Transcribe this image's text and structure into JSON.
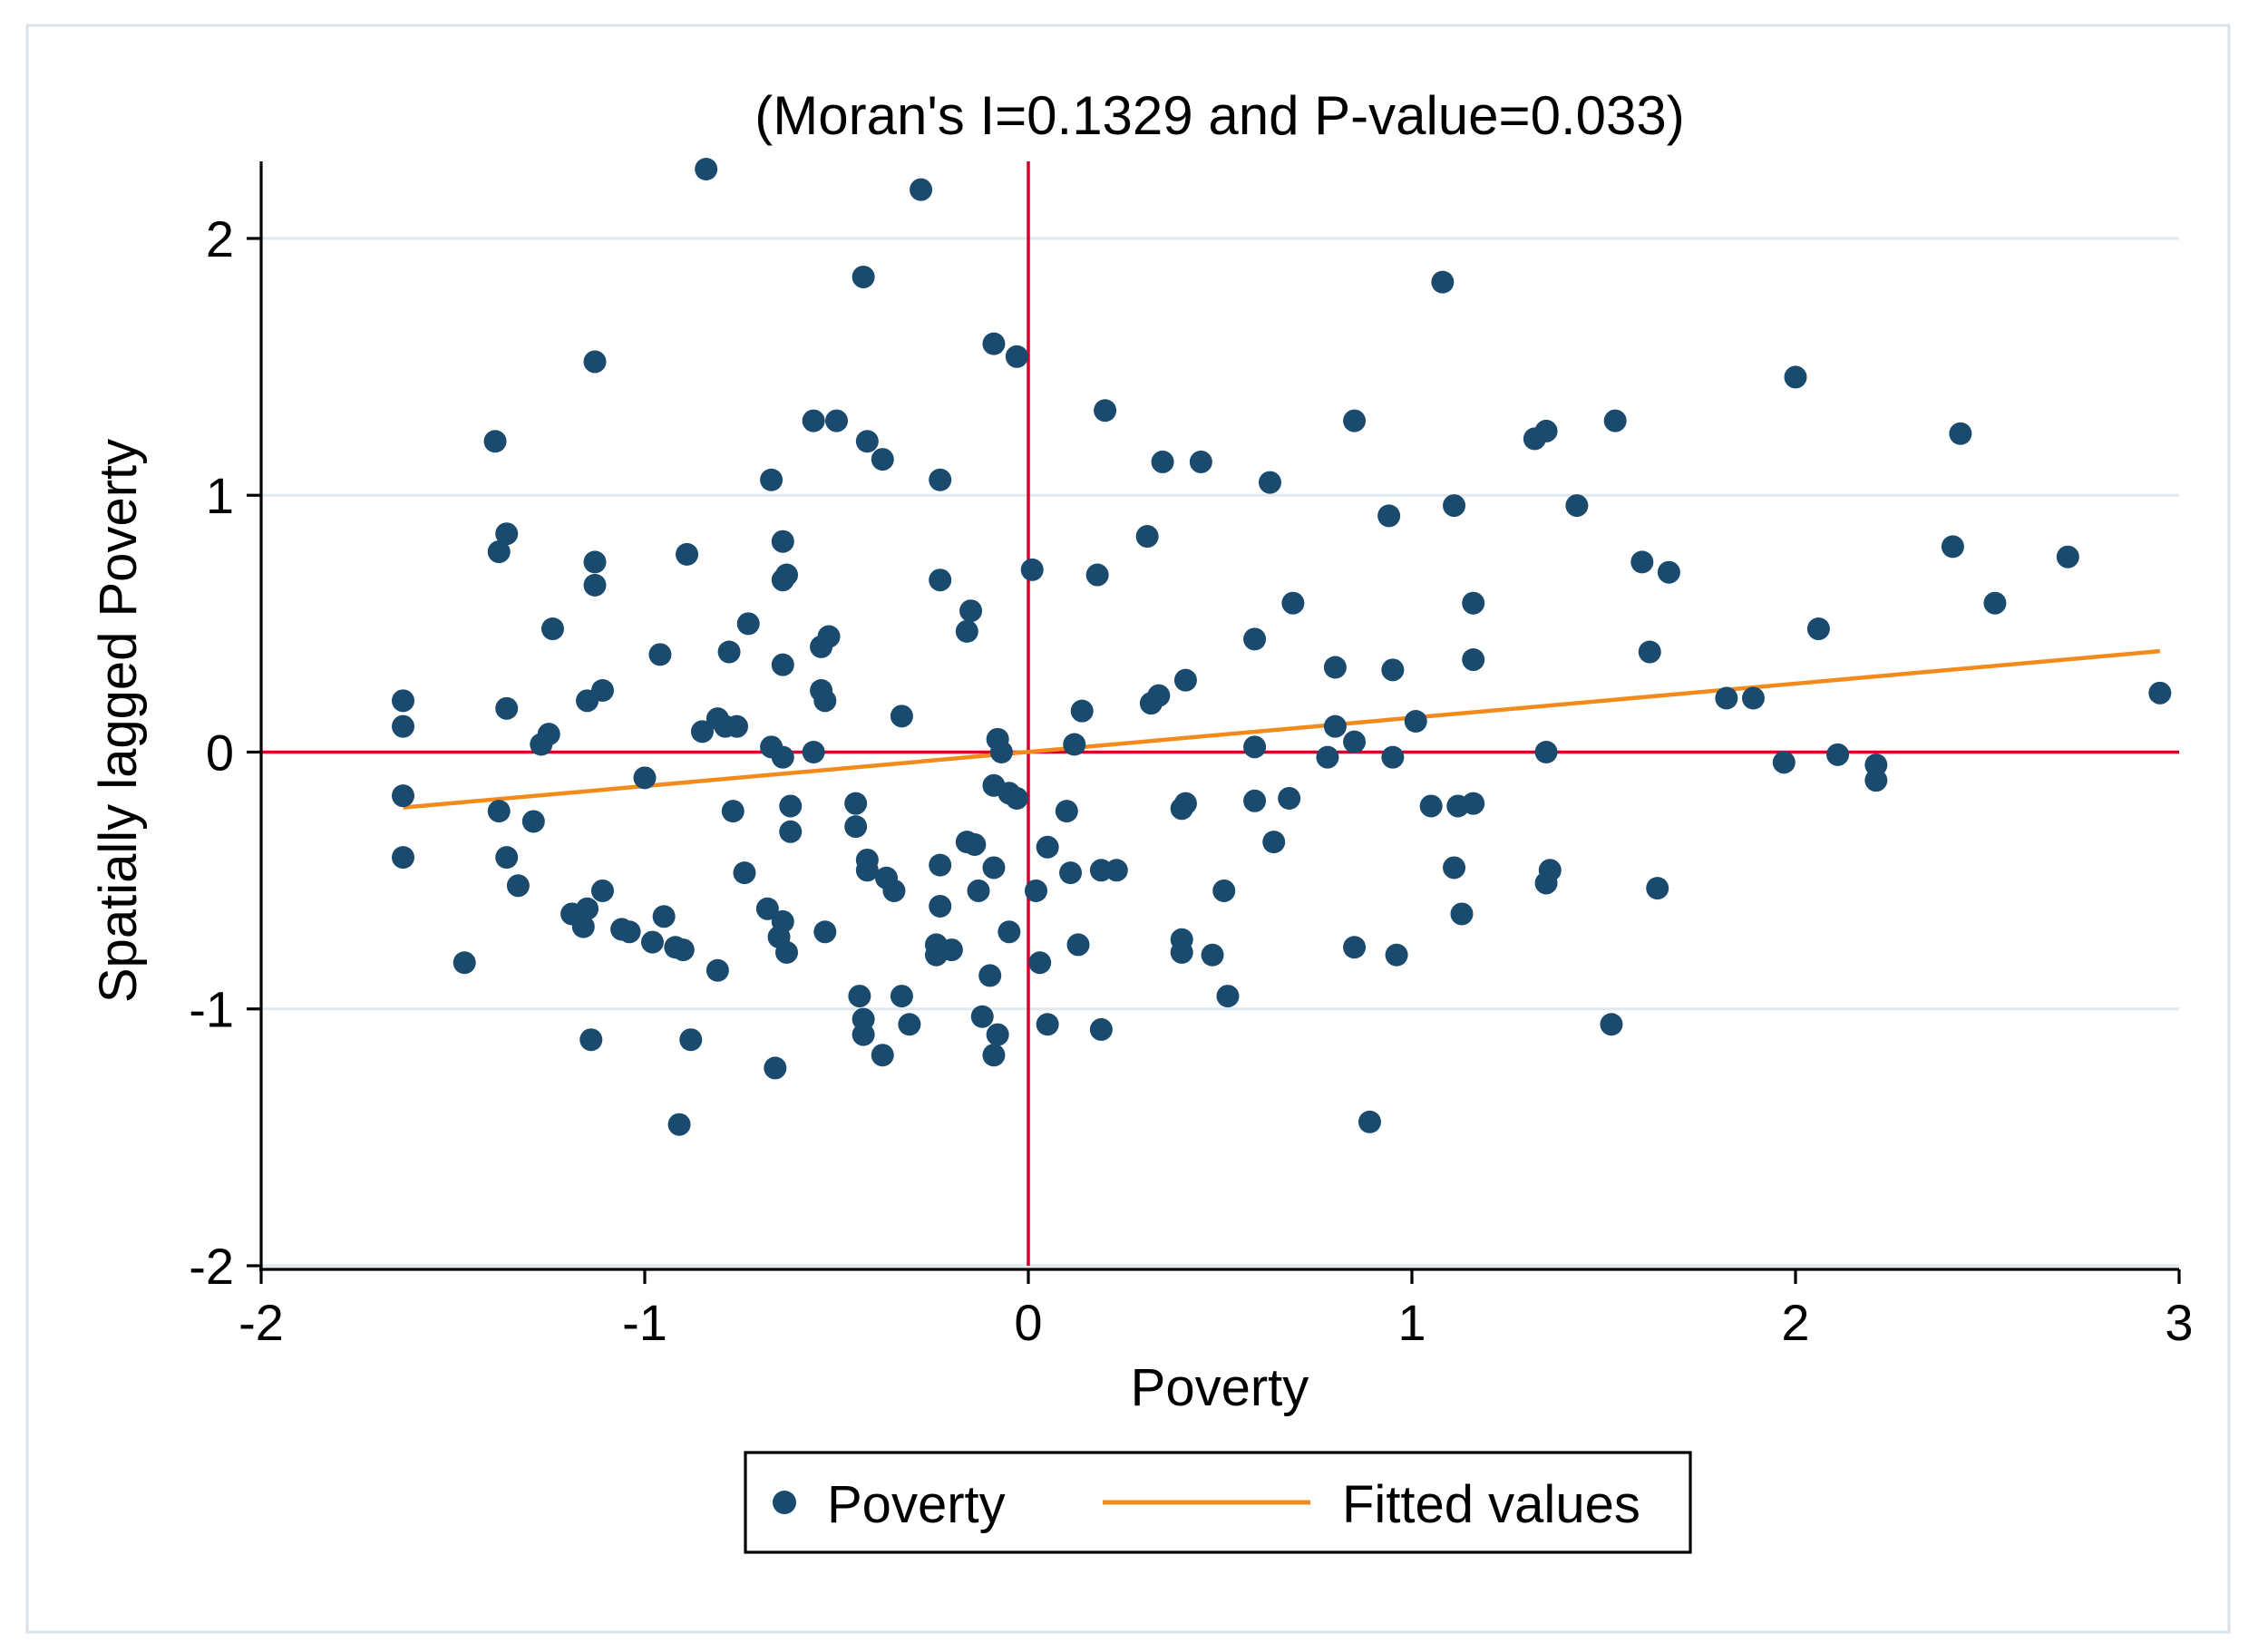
{
  "chart_data": {
    "type": "scatter",
    "title": "(Moran's I=0.1329 and P-value=0.033)",
    "xlabel": "Poverty",
    "ylabel": "Spatially lagged Poverty",
    "xlim": [
      -2,
      3
    ],
    "ylim": [
      -2,
      2.3
    ],
    "xticks": [
      -2,
      -1,
      0,
      1,
      2,
      3
    ],
    "yticks": [
      -2,
      -1,
      0,
      1,
      2
    ],
    "xtick_labels": [
      "-2",
      "-1",
      "0",
      "1",
      "2",
      "3"
    ],
    "ytick_labels": [
      "-2",
      "-1",
      "0",
      "1",
      "2"
    ],
    "grid": "horizontal",
    "reference_lines": {
      "x": 0,
      "y": 0,
      "color": "#d6002a"
    },
    "series": [
      {
        "name": "Poverty",
        "kind": "scatter",
        "color": "#1a4b6e",
        "points": [
          [
            -0.84,
            2.27
          ],
          [
            -0.28,
            2.19
          ],
          [
            -0.43,
            1.85
          ],
          [
            1.08,
            1.83
          ],
          [
            -0.09,
            1.59
          ],
          [
            -0.03,
            1.54
          ],
          [
            -1.13,
            1.52
          ],
          [
            2.0,
            1.46
          ],
          [
            -0.56,
            1.29
          ],
          [
            -0.5,
            1.29
          ],
          [
            0.85,
            1.29
          ],
          [
            1.53,
            1.29
          ],
          [
            0.2,
            1.33
          ],
          [
            1.35,
            1.25
          ],
          [
            1.32,
            1.22
          ],
          [
            2.43,
            1.24
          ],
          [
            -1.39,
            1.21
          ],
          [
            -0.42,
            1.21
          ],
          [
            -0.38,
            1.14
          ],
          [
            0.35,
            1.13
          ],
          [
            0.45,
            1.13
          ],
          [
            -0.67,
            1.06
          ],
          [
            -0.23,
            1.06
          ],
          [
            0.63,
            1.05
          ],
          [
            1.11,
            0.96
          ],
          [
            1.43,
            0.96
          ],
          [
            0.94,
            0.92
          ],
          [
            -1.36,
            0.85
          ],
          [
            0.31,
            0.84
          ],
          [
            -0.64,
            0.82
          ],
          [
            2.41,
            0.8
          ],
          [
            -1.38,
            0.78
          ],
          [
            -0.89,
            0.77
          ],
          [
            2.71,
            0.76
          ],
          [
            -1.13,
            0.74
          ],
          [
            1.6,
            0.74
          ],
          [
            0.01,
            0.71
          ],
          [
            0.18,
            0.69
          ],
          [
            1.67,
            0.7
          ],
          [
            -0.63,
            0.69
          ],
          [
            -0.64,
            0.67
          ],
          [
            -0.23,
            0.67
          ],
          [
            -1.13,
            0.65
          ],
          [
            0.69,
            0.58
          ],
          [
            1.16,
            0.58
          ],
          [
            2.52,
            0.58
          ],
          [
            -0.15,
            0.55
          ],
          [
            -0.73,
            0.5
          ],
          [
            -1.24,
            0.48
          ],
          [
            -0.16,
            0.47
          ],
          [
            2.06,
            0.48
          ],
          [
            -0.52,
            0.45
          ],
          [
            0.59,
            0.44
          ],
          [
            -0.54,
            0.41
          ],
          [
            1.62,
            0.39
          ],
          [
            -0.78,
            0.39
          ],
          [
            -0.96,
            0.38
          ],
          [
            1.16,
            0.36
          ],
          [
            -0.64,
            0.34
          ],
          [
            0.8,
            0.33
          ],
          [
            0.95,
            0.32
          ],
          [
            0.41,
            0.28
          ],
          [
            -1.11,
            0.24
          ],
          [
            -0.54,
            0.24
          ],
          [
            0.34,
            0.22
          ],
          [
            0.32,
            0.19
          ],
          [
            2.95,
            0.23
          ],
          [
            -1.63,
            0.2
          ],
          [
            -1.15,
            0.2
          ],
          [
            1.82,
            0.21
          ],
          [
            1.89,
            0.21
          ],
          [
            -0.53,
            0.2
          ],
          [
            -1.36,
            0.17
          ],
          [
            0.14,
            0.16
          ],
          [
            -0.33,
            0.14
          ],
          [
            -0.81,
            0.13
          ],
          [
            -0.79,
            0.1
          ],
          [
            -0.76,
            0.1
          ],
          [
            0.8,
            0.1
          ],
          [
            1.01,
            0.12
          ],
          [
            -1.63,
            0.1
          ],
          [
            -0.85,
            0.08
          ],
          [
            -1.25,
            0.07
          ],
          [
            -0.08,
            0.05
          ],
          [
            0.85,
            0.04
          ],
          [
            -1.27,
            0.03
          ],
          [
            0.12,
            0.03
          ],
          [
            0.59,
            0.02
          ],
          [
            -0.67,
            0.02
          ],
          [
            -0.56,
            0.0
          ],
          [
            1.35,
            0.0
          ],
          [
            -0.07,
            0.0
          ],
          [
            -0.64,
            -0.02
          ],
          [
            0.95,
            -0.02
          ],
          [
            0.78,
            -0.02
          ],
          [
            1.97,
            -0.04
          ],
          [
            2.11,
            -0.01
          ],
          [
            2.21,
            -0.05
          ],
          [
            -1.0,
            -0.1
          ],
          [
            2.21,
            -0.11
          ],
          [
            -0.09,
            -0.13
          ],
          [
            -0.05,
            -0.16
          ],
          [
            -0.03,
            -0.18
          ],
          [
            0.59,
            -0.19
          ],
          [
            0.68,
            -0.18
          ],
          [
            -0.45,
            -0.2
          ],
          [
            -1.63,
            -0.17
          ],
          [
            0.41,
            -0.2
          ],
          [
            -0.62,
            -0.21
          ],
          [
            1.16,
            -0.2
          ],
          [
            1.05,
            -0.21
          ],
          [
            1.12,
            -0.21
          ],
          [
            -1.38,
            -0.23
          ],
          [
            0.4,
            -0.22
          ],
          [
            -0.77,
            -0.23
          ],
          [
            0.1,
            -0.23
          ],
          [
            -1.29,
            -0.27
          ],
          [
            -0.45,
            -0.29
          ],
          [
            -0.62,
            -0.31
          ],
          [
            0.64,
            -0.35
          ],
          [
            -0.16,
            -0.35
          ],
          [
            -0.14,
            -0.36
          ],
          [
            0.05,
            -0.37
          ],
          [
            -1.36,
            -0.41
          ],
          [
            -1.63,
            -0.41
          ],
          [
            -0.42,
            -0.42
          ],
          [
            -0.23,
            -0.44
          ],
          [
            1.11,
            -0.45
          ],
          [
            -0.09,
            -0.45
          ],
          [
            0.19,
            -0.46
          ],
          [
            0.23,
            -0.46
          ],
          [
            0.11,
            -0.47
          ],
          [
            -0.42,
            -0.46
          ],
          [
            -0.74,
            -0.47
          ],
          [
            1.36,
            -0.46
          ],
          [
            -0.37,
            -0.49
          ],
          [
            1.35,
            -0.51
          ],
          [
            -1.33,
            -0.52
          ],
          [
            -1.11,
            -0.54
          ],
          [
            -0.35,
            -0.54
          ],
          [
            -0.13,
            -0.54
          ],
          [
            0.02,
            -0.54
          ],
          [
            0.51,
            -0.54
          ],
          [
            1.64,
            -0.53
          ],
          [
            -1.15,
            -0.61
          ],
          [
            -1.19,
            -0.63
          ],
          [
            -0.68,
            -0.61
          ],
          [
            1.13,
            -0.63
          ],
          [
            -0.23,
            -0.6
          ],
          [
            -0.95,
            -0.64
          ],
          [
            -0.64,
            -0.66
          ],
          [
            -1.16,
            -0.68
          ],
          [
            -1.06,
            -0.69
          ],
          [
            -1.04,
            -0.7
          ],
          [
            -0.05,
            -0.7
          ],
          [
            -0.53,
            -0.7
          ],
          [
            -0.65,
            -0.72
          ],
          [
            0.4,
            -0.73
          ],
          [
            -0.98,
            -0.74
          ],
          [
            -0.24,
            -0.75
          ],
          [
            0.13,
            -0.75
          ],
          [
            0.85,
            -0.76
          ],
          [
            -0.92,
            -0.76
          ],
          [
            -0.2,
            -0.77
          ],
          [
            -0.9,
            -0.77
          ],
          [
            -0.24,
            -0.79
          ],
          [
            -0.63,
            -0.78
          ],
          [
            0.4,
            -0.78
          ],
          [
            0.48,
            -0.79
          ],
          [
            0.96,
            -0.79
          ],
          [
            0.03,
            -0.82
          ],
          [
            -1.47,
            -0.82
          ],
          [
            -0.81,
            -0.85
          ],
          [
            -0.1,
            -0.87
          ],
          [
            -0.44,
            -0.95
          ],
          [
            -0.33,
            -0.95
          ],
          [
            0.52,
            -0.95
          ],
          [
            -0.12,
            -1.03
          ],
          [
            -0.43,
            -1.04
          ],
          [
            -0.31,
            -1.06
          ],
          [
            0.05,
            -1.06
          ],
          [
            1.52,
            -1.06
          ],
          [
            -0.43,
            -1.1
          ],
          [
            -0.08,
            -1.1
          ],
          [
            0.19,
            -1.08
          ],
          [
            -0.88,
            -1.12
          ],
          [
            -1.14,
            -1.12
          ],
          [
            -0.38,
            -1.18
          ],
          [
            -0.09,
            -1.18
          ],
          [
            -0.66,
            -1.23
          ],
          [
            -0.91,
            -1.45
          ],
          [
            0.89,
            -1.44
          ]
        ]
      },
      {
        "name": "Fitted values",
        "kind": "line",
        "color": "#f28a1c",
        "x": [
          -1.63,
          2.95
        ],
        "y": [
          -0.216,
          0.393
        ]
      }
    ],
    "legend": {
      "position": "bottom-center",
      "items": [
        "Poverty",
        "Fitted values"
      ]
    }
  }
}
